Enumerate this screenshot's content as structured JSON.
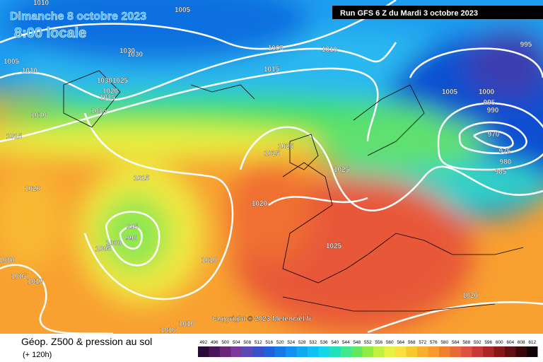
{
  "header": {
    "date": "Dimanche 8 octobre 2023",
    "time": "8:00 locale",
    "run": "Run GFS 6 Z du Mardi 3 octobre 2023"
  },
  "copyright": "Copyright © 2023 Meteociel.fr",
  "footer": {
    "title": "Géop. Z500 & pression au sol",
    "subtitle": "(+ 120h)"
  },
  "colorbar": {
    "labels": [
      492,
      496,
      500,
      504,
      508,
      512,
      516,
      520,
      524,
      528,
      532,
      536,
      540,
      544,
      548,
      552,
      556,
      560,
      564,
      568,
      572,
      576,
      580,
      584,
      588,
      592,
      596,
      600,
      604,
      608,
      612
    ],
    "colors": [
      "#2a0838",
      "#4a1458",
      "#6a2478",
      "#7a3a9a",
      "#5a4ab8",
      "#3a50c8",
      "#2060d8",
      "#1478e8",
      "#1090f0",
      "#10a8f0",
      "#10c0f0",
      "#10d8e8",
      "#20e0c0",
      "#40e890",
      "#60e860",
      "#90ec40",
      "#c0f040",
      "#e8f040",
      "#f8e040",
      "#f8c830",
      "#f8b030",
      "#f89a30",
      "#f08030",
      "#e86838",
      "#e05040",
      "#c83838",
      "#a82828",
      "#881818",
      "#601010",
      "#380808",
      "#100404"
    ]
  },
  "isobar_labels": [
    1010,
    1005,
    1005,
    1010,
    1030,
    1030,
    1030,
    1025,
    1020,
    1015,
    1015,
    1010,
    1015,
    1005,
    1010,
    1015,
    995,
    1005,
    1000,
    995,
    990,
    970,
    975,
    980,
    985,
    1025,
    1025,
    1025,
    1015,
    1020,
    1020,
    995,
    990,
    1000,
    1005,
    1025,
    1010,
    1000,
    1005,
    1010,
    1020,
    1010,
    1010
  ]
}
